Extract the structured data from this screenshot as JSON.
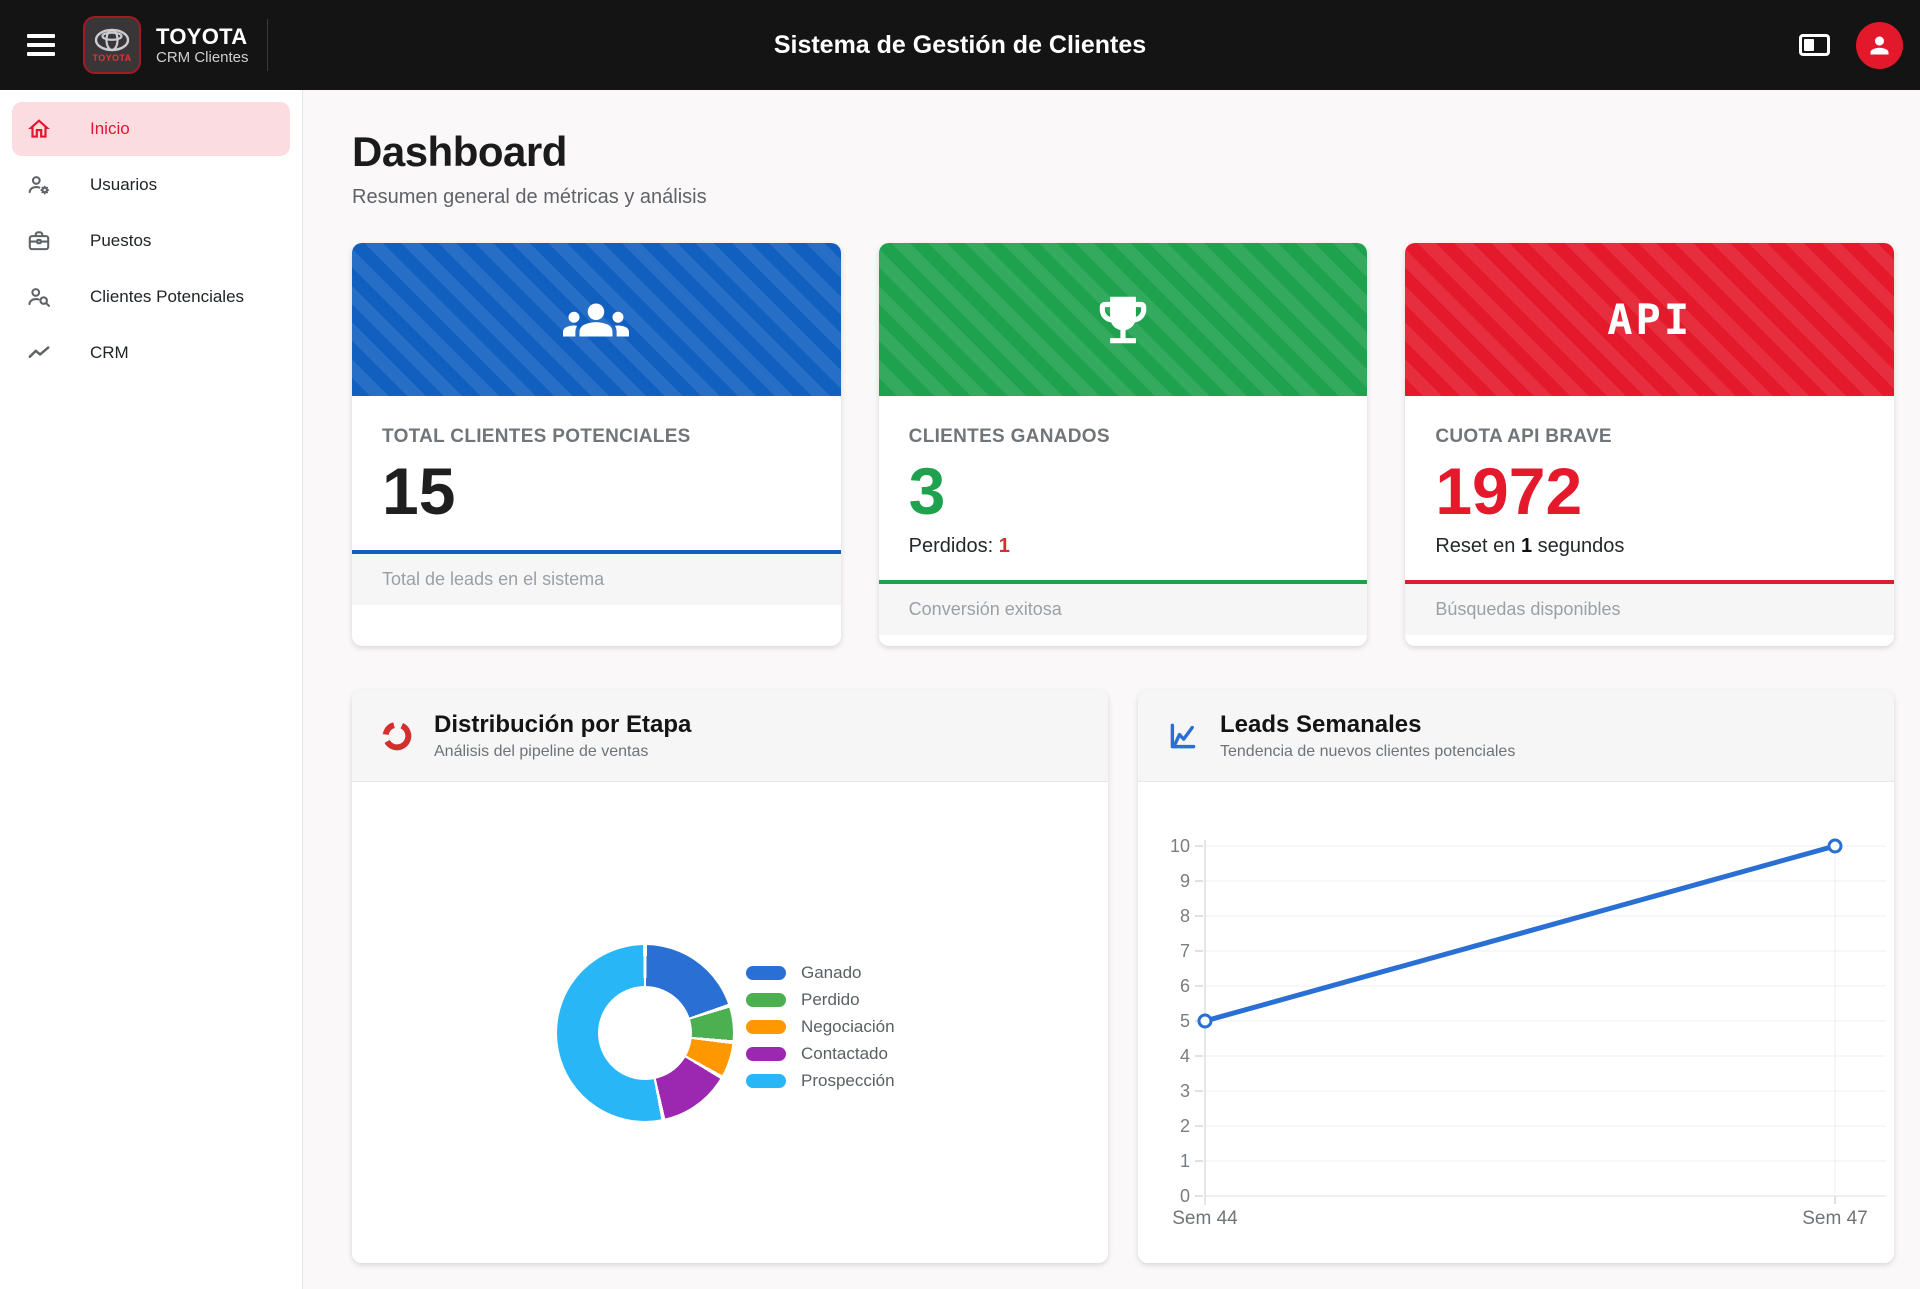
{
  "topbar": {
    "brand_name": "TOYOTA",
    "brand_subtitle": "CRM Clientes",
    "logo_text": "TOYOTA",
    "title": "Sistema de Gestión de Clientes",
    "icons": [
      "hamburger-icon",
      "toyota-logo",
      "panel-toggle-icon",
      "user-avatar-icon"
    ],
    "avatar_color": "#e3192b"
  },
  "sidebar": {
    "items": [
      {
        "label": "Inicio",
        "icon": "home-icon",
        "active": true
      },
      {
        "label": "Usuarios",
        "icon": "user-gear-icon",
        "active": false
      },
      {
        "label": "Puestos",
        "icon": "briefcase-icon",
        "active": false
      },
      {
        "label": "Clientes Potenciales",
        "icon": "user-search-icon",
        "active": false
      },
      {
        "label": "CRM",
        "icon": "trend-line-icon",
        "active": false
      }
    ],
    "active_color": "#e0172f"
  },
  "page": {
    "title": "Dashboard",
    "subtitle": "Resumen general de métricas y análisis"
  },
  "stats": [
    {
      "label": "TOTAL CLIENTES POTENCIALES",
      "value": "15",
      "footer": "Total de leads en el sistema",
      "accent": "#1160c0",
      "icon": "people-group-icon"
    },
    {
      "label": "CLIENTES GANADOS",
      "value": "3",
      "sub_prefix": "Perdidos: ",
      "sub_value": "1",
      "footer": "Conversión exitosa",
      "accent": "#1fa24e",
      "icon": "trophy-icon"
    },
    {
      "label": "CUOTA API BRAVE",
      "value": "1972",
      "sub_prefix": "Reset en ",
      "sub_value": "1",
      "sub_suffix": " segundos",
      "footer": "Búsquedas disponibles",
      "accent": "#e5192c",
      "icon": "api-text",
      "band_text": "API"
    }
  ],
  "charts": {
    "donut": {
      "title": "Distribución por Etapa",
      "subtitle": "Análisis del pipeline de ventas",
      "icon": "donut-chart-icon"
    },
    "line": {
      "title": "Leads Semanales",
      "subtitle": "Tendencia de nuevos clientes potenciales",
      "icon": "line-chart-icon"
    }
  },
  "chart_data": [
    {
      "type": "pie",
      "title": "Distribución por Etapa",
      "labels": [
        "Ganado",
        "Perdido",
        "Negociación",
        "Contactado",
        "Prospección"
      ],
      "values": [
        3,
        1,
        1,
        2,
        8
      ],
      "colors": [
        "#2a6fd4",
        "#4caf50",
        "#ff9800",
        "#9c27b0",
        "#29b6f6"
      ],
      "donut_hole": 0.53,
      "legend_position": "right"
    },
    {
      "type": "line",
      "title": "Leads Semanales",
      "x": [
        "Sem 44",
        "Sem 47"
      ],
      "series": [
        {
          "name": "Leads",
          "values": [
            5,
            10
          ],
          "color": "#2a6fd4"
        }
      ],
      "ylim": [
        0,
        10
      ],
      "ytick_step": 1,
      "grid": true,
      "xlabel": "",
      "ylabel": ""
    }
  ]
}
